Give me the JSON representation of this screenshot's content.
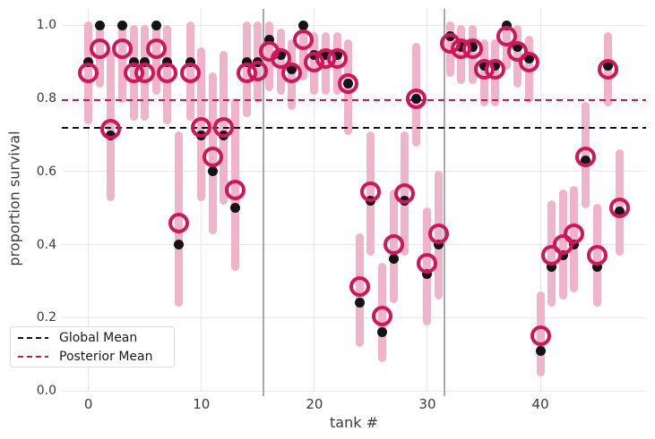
{
  "figure": {
    "background": "#ffffff"
  },
  "colors": {
    "observed_dot": "#141414",
    "posterior_ring": "#d2145a",
    "interval_bar": "#f0b4ca",
    "global_mean_line": "#111111",
    "posterior_mean_line": "#d2145a",
    "grid": "#e7e7e7",
    "separator": "#aaaaaa",
    "tick_text": "#3b3b3b"
  },
  "chart_data": {
    "type": "scatter",
    "title": "",
    "xlabel": "tank #",
    "ylabel": "proportion survival",
    "xlim": [
      -2.35,
      49.35
    ],
    "ylim": [
      0,
      1.05
    ],
    "x_ticks": [
      0,
      10,
      20,
      30,
      40
    ],
    "y_ticks": [
      0.0,
      0.2,
      0.4,
      0.6,
      0.8,
      1.0
    ],
    "grid": true,
    "group_separators_x": [
      15.5,
      31.5
    ],
    "reference_lines": [
      {
        "label": "Global Mean",
        "value": 0.72,
        "color": "#111111"
      },
      {
        "label": "Posterior Mean",
        "value": 0.795,
        "color": "#d2145a"
      }
    ],
    "legend": {
      "position": "lower left"
    },
    "series_names": [
      "observed proportion survival (black dots)",
      "posterior mean survival (crimson rings)",
      "credible interval (pink bars)"
    ],
    "tank_ids": [
      0,
      1,
      2,
      3,
      4,
      5,
      6,
      7,
      8,
      9,
      10,
      11,
      12,
      13,
      14,
      15,
      16,
      17,
      18,
      19,
      20,
      21,
      22,
      23,
      24,
      25,
      26,
      27,
      28,
      29,
      30,
      31,
      32,
      33,
      34,
      35,
      36,
      37,
      38,
      39,
      40,
      41,
      42,
      43,
      44,
      45,
      46,
      47
    ],
    "observed": [
      0.9,
      1.0,
      0.7,
      1.0,
      0.9,
      0.9,
      1.0,
      0.9,
      0.4,
      0.9,
      0.7,
      0.6,
      0.7,
      0.5,
      0.9,
      0.9,
      0.96,
      0.92,
      0.88,
      1.0,
      0.92,
      0.92,
      0.92,
      0.84,
      0.24,
      0.52,
      0.16,
      0.36,
      0.52,
      0.8,
      0.32,
      0.4,
      0.97,
      0.94,
      0.94,
      0.89,
      0.89,
      1.0,
      0.94,
      0.91,
      0.11,
      0.34,
      0.37,
      0.4,
      0.63,
      0.34,
      0.89,
      0.49
    ],
    "posterior": [
      0.87,
      0.935,
      0.715,
      0.935,
      0.87,
      0.87,
      0.935,
      0.87,
      0.46,
      0.87,
      0.72,
      0.64,
      0.72,
      0.55,
      0.87,
      0.875,
      0.93,
      0.91,
      0.87,
      0.96,
      0.9,
      0.91,
      0.91,
      0.84,
      0.285,
      0.545,
      0.205,
      0.4,
      0.54,
      0.8,
      0.35,
      0.43,
      0.95,
      0.935,
      0.935,
      0.88,
      0.88,
      0.97,
      0.93,
      0.9,
      0.15,
      0.37,
      0.4,
      0.43,
      0.64,
      0.37,
      0.88,
      0.5
    ],
    "interval_lo": [
      0.74,
      0.84,
      0.53,
      0.8,
      0.75,
      0.75,
      0.82,
      0.74,
      0.24,
      0.75,
      0.53,
      0.44,
      0.52,
      0.34,
      0.76,
      0.8,
      0.83,
      0.82,
      0.78,
      0.86,
      0.82,
      0.82,
      0.82,
      0.71,
      0.13,
      0.38,
      0.09,
      0.25,
      0.38,
      0.68,
      0.19,
      0.26,
      0.87,
      0.85,
      0.85,
      0.79,
      0.79,
      0.89,
      0.84,
      0.8,
      0.05,
      0.24,
      0.26,
      0.28,
      0.51,
      0.24,
      0.79,
      0.38
    ],
    "interval_hi": [
      1.0,
      1.0,
      0.92,
      1.0,
      0.99,
      0.99,
      1.0,
      0.99,
      0.7,
      1.0,
      0.93,
      0.86,
      0.92,
      0.79,
      1.0,
      1.0,
      1.0,
      0.98,
      0.95,
      1.0,
      0.97,
      0.97,
      0.97,
      0.95,
      0.42,
      0.7,
      0.34,
      0.54,
      0.7,
      0.94,
      0.49,
      0.59,
      1.0,
      0.99,
      0.99,
      0.95,
      0.95,
      1.0,
      0.99,
      0.96,
      0.26,
      0.51,
      0.54,
      0.55,
      0.78,
      0.5,
      0.97,
      0.65
    ]
  }
}
